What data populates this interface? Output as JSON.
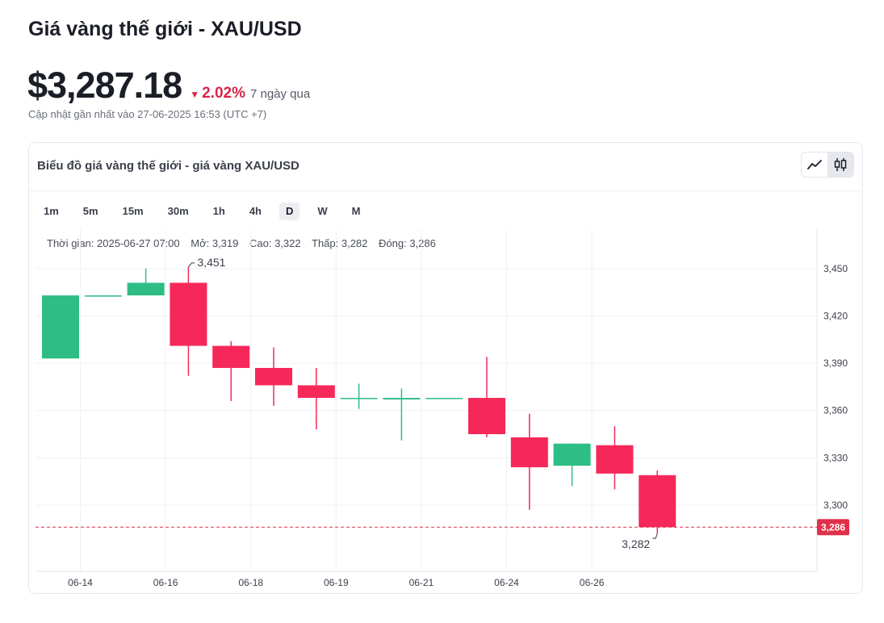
{
  "page": {
    "title": "Giá vàng thế giới - XAU/USD",
    "price": "$3,287.18",
    "change_pct": "2.02%",
    "change_period": "7 ngày qua",
    "updated": "Cập nhật gần nhất vào 27-06-2025 16:53 (UTC +7)"
  },
  "card": {
    "title": "Biểu đồ giá vàng thế giới - giá vàng XAU/USD",
    "timeframes": [
      "1m",
      "5m",
      "15m",
      "30m",
      "1h",
      "4h",
      "D",
      "W",
      "M"
    ],
    "active_timeframe": "D",
    "views": [
      {
        "icon": "line-chart-icon",
        "active": false
      },
      {
        "icon": "candlestick-icon",
        "active": true
      }
    ]
  },
  "ohlc": {
    "time": "Thời gian: 2025-06-27 07:00",
    "open": "Mở: 3,319",
    "high": "Cao: 3,322",
    "low": "Thấp: 3,282",
    "close": "Đóng: 3,286"
  },
  "colors": {
    "up": "#2ebd85",
    "down": "#f6285a",
    "last_line": "#e0314b",
    "grid": "#eef0f3"
  },
  "chart_data": {
    "type": "candlestick",
    "y_ticks": [
      3300,
      3330,
      3360,
      3390,
      3420,
      3450
    ],
    "y_tick_labels": [
      "3,300",
      "3,330",
      "3,360",
      "3,390",
      "3,420",
      "3,450"
    ],
    "ylim": [
      3258,
      3475
    ],
    "x_labels": [
      "06-14",
      "06-16",
      "06-18",
      "06-19",
      "06-21",
      "06-24",
      "06-26"
    ],
    "grid": true,
    "candles": [
      {
        "o": 3393,
        "h": 3433,
        "l": 3393,
        "c": 3433
      },
      {
        "o": 3433,
        "h": 3433,
        "l": 3433,
        "c": 3433
      },
      {
        "o": 3433,
        "h": 3450,
        "l": 3433,
        "c": 3441
      },
      {
        "o": 3441,
        "h": 3451,
        "l": 3382,
        "c": 3401
      },
      {
        "o": 3401,
        "h": 3404,
        "l": 3366,
        "c": 3387
      },
      {
        "o": 3387,
        "h": 3400,
        "l": 3363,
        "c": 3376
      },
      {
        "o": 3376,
        "h": 3387,
        "l": 3348,
        "c": 3368
      },
      {
        "o": 3368,
        "h": 3377,
        "l": 3361,
        "c": 3368
      },
      {
        "o": 3367,
        "h": 3374,
        "l": 3341,
        "c": 3368
      },
      {
        "o": 3368,
        "h": 3368,
        "l": 3368,
        "c": 3368
      },
      {
        "o": 3368,
        "h": 3394,
        "l": 3343,
        "c": 3345
      },
      {
        "o": 3343,
        "h": 3358,
        "l": 3297,
        "c": 3324
      },
      {
        "o": 3325,
        "h": 3339,
        "l": 3312,
        "c": 3339
      },
      {
        "o": 3338,
        "h": 3350,
        "l": 3310,
        "c": 3320
      },
      {
        "o": 3319,
        "h": 3322,
        "l": 3282,
        "c": 3286
      }
    ],
    "candle_x_labels": {
      "06-14": 0.9,
      "06-16": 2.9,
      "06-18": 4.9,
      "06-19": 6.9,
      "06-21": 8.9,
      "06-24": 10.9,
      "06-26": 12.9
    },
    "max_annotation": {
      "candle": 3,
      "value": 3451,
      "label": "3,451"
    },
    "min_annotation": {
      "candle": 14,
      "value": 3282,
      "label": "3,282"
    },
    "last_price": {
      "value": 3286,
      "label": "3,286"
    }
  }
}
